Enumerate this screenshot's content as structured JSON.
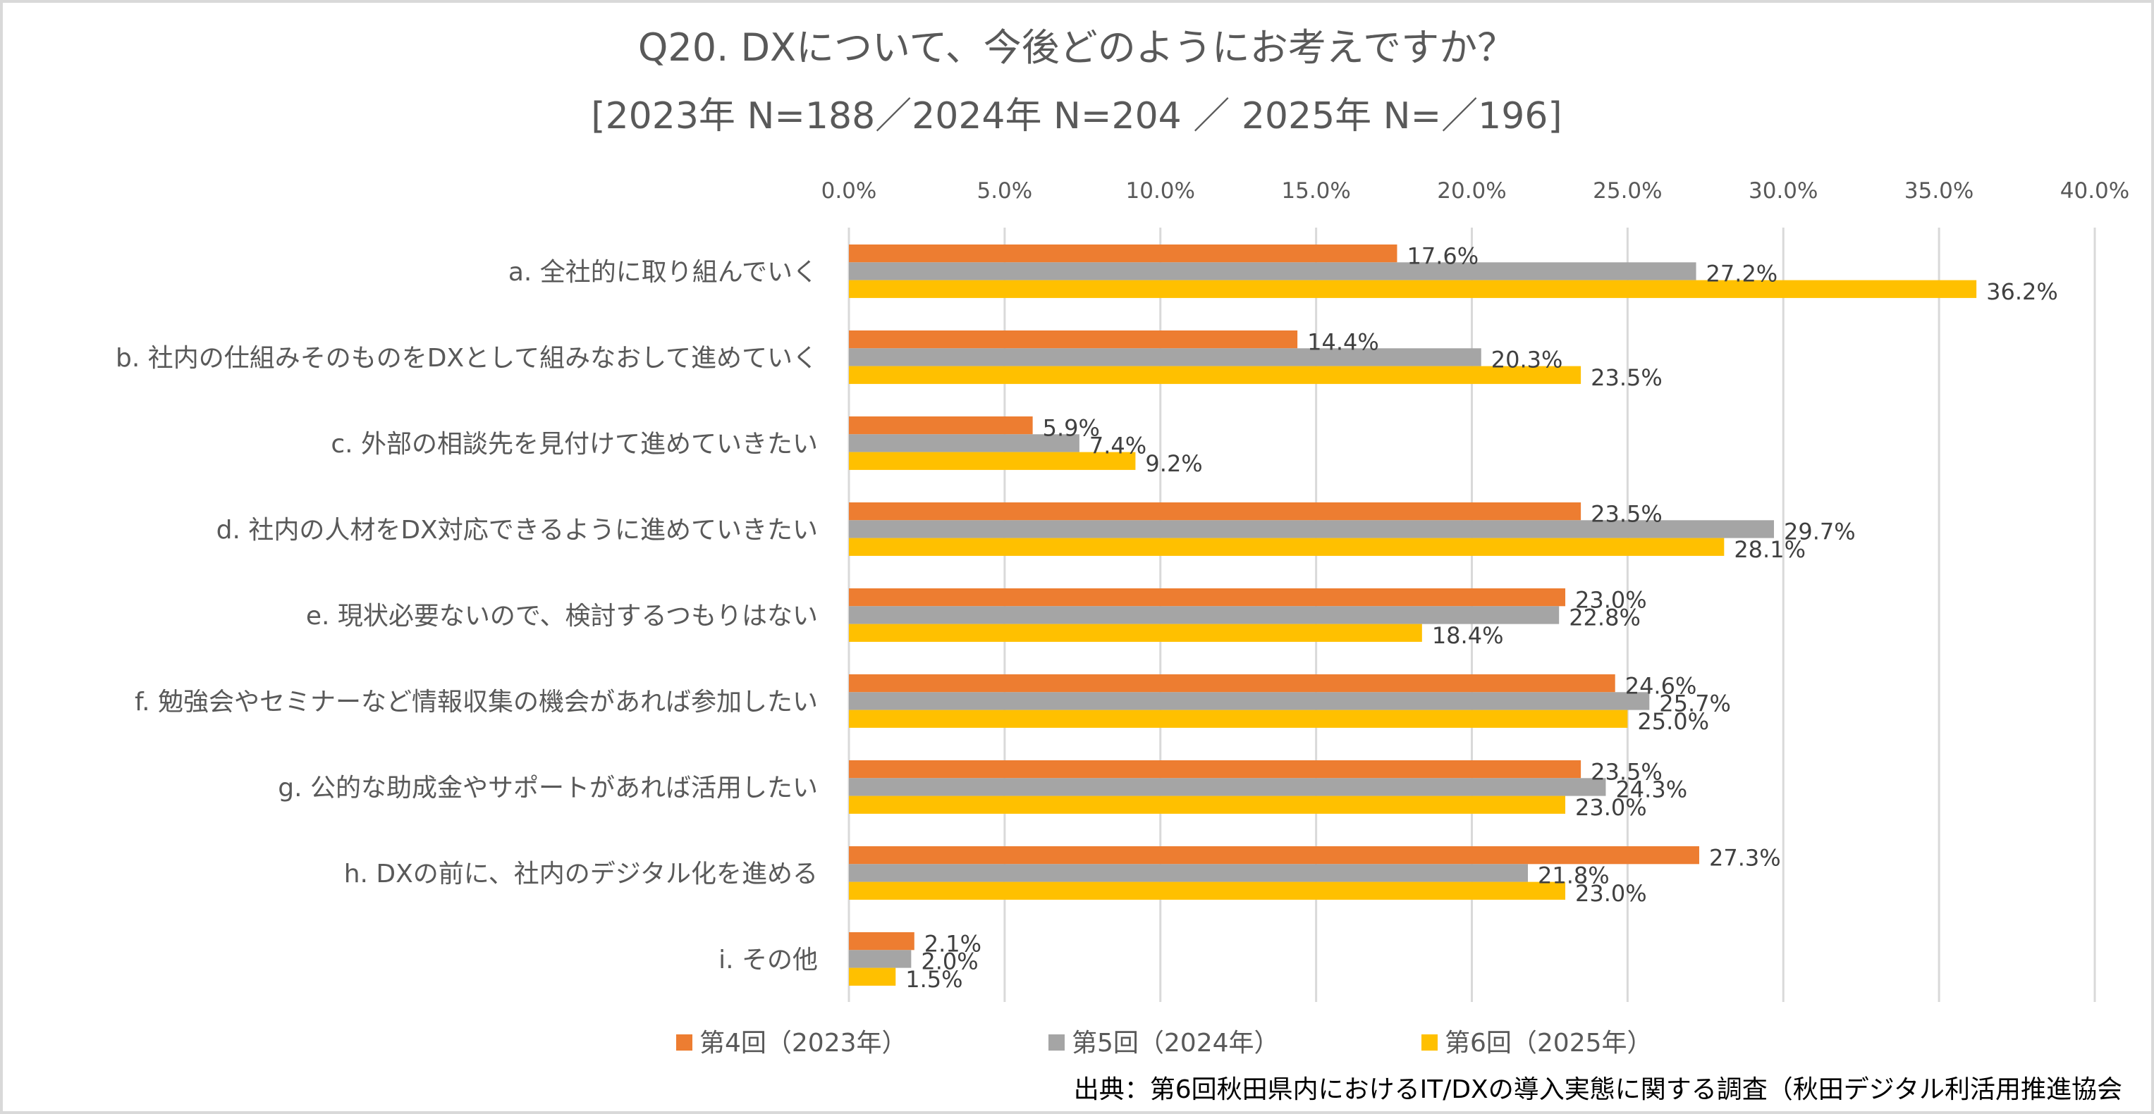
{
  "chart_data": {
    "type": "bar",
    "orientation": "horizontal",
    "title": "Q20.  DXについて、今後どのようにお考えですか？",
    "subtitle": "[2023年 N=188／2024年 N=204 ／ 2025年 N=／196]",
    "xlabel": "",
    "ylabel": "",
    "xlim": [
      0,
      40
    ],
    "x_axis_position": "top",
    "tick_values": [
      0,
      5,
      10,
      15,
      20,
      25,
      30,
      35,
      40
    ],
    "tick_labels": [
      "0.0%",
      "5.0%",
      "10.0%",
      "15.0%",
      "20.0%",
      "25.0%",
      "30.0%",
      "35.0%",
      "40.0%"
    ],
    "grid": true,
    "legend_position": "bottom",
    "categories": [
      "a. 全社的に取り組んでいく",
      "b. 社内の仕組みそのものをDXとして組みなおして進めていく",
      "c. 外部の相談先を見付けて進めていきたい",
      "d. 社内の人材をDX対応できるように進めていきたい",
      "e. 現状必要ないので、検討するつもりはない",
      "f. 勉強会やセミナーなど情報収集の機会があれば参加したい",
      "g. 公的な助成金やサポートがあれば活用したい",
      "h. DXの前に、社内のデジタル化を進める",
      "i. その他"
    ],
    "series": [
      {
        "name": "第4回（2023年）",
        "color": "#ED7D31",
        "values": [
          17.6,
          14.4,
          5.9,
          23.5,
          23.0,
          24.6,
          23.5,
          27.3,
          2.1
        ]
      },
      {
        "name": "第5回（2024年）",
        "color": "#A5A5A5",
        "values": [
          27.2,
          20.3,
          7.4,
          29.7,
          22.8,
          25.7,
          24.3,
          21.8,
          2.0
        ]
      },
      {
        "name": "第6回（2025年）",
        "color": "#FFC000",
        "values": [
          36.2,
          23.5,
          9.2,
          28.1,
          18.4,
          25.0,
          23.0,
          23.0,
          1.5
        ]
      }
    ],
    "value_suffix": "%",
    "value_decimals": 1,
    "source": "出典：第6回秋田県内におけるIT/DXの導入実態に関する調査（秋田デジタル利活用推進協会"
  }
}
